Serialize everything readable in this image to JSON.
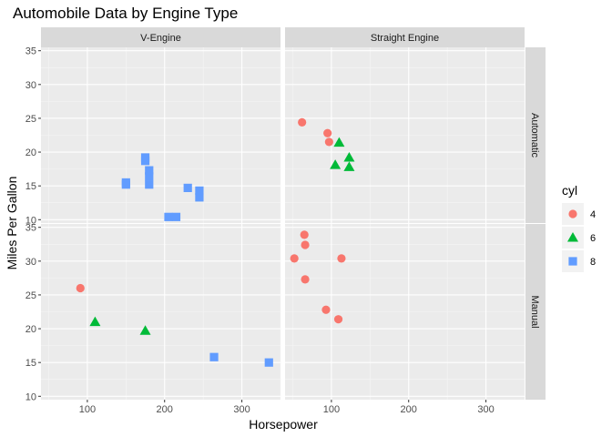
{
  "chart_data": {
    "type": "scatter",
    "title": "Automobile Data by Engine Type",
    "xlabel": "Horsepower",
    "ylabel": "Miles Per Gallon",
    "xlim": [
      40,
      350
    ],
    "ylim": [
      9.5,
      35.5
    ],
    "x_ticks": [
      100,
      200,
      300
    ],
    "y_ticks": [
      10,
      15,
      20,
      25,
      30,
      35
    ],
    "grid": true,
    "legend_position": "right",
    "col_facets": [
      "V-Engine",
      "Straight Engine"
    ],
    "row_facets": [
      "Automatic",
      "Manual"
    ],
    "legend": {
      "title": "cyl",
      "entries": [
        {
          "label": "4",
          "color": "#F8766D",
          "shape": "circle"
        },
        {
          "label": "6",
          "color": "#00BA38",
          "shape": "triangle"
        },
        {
          "label": "8",
          "color": "#619CFF",
          "shape": "square"
        }
      ]
    },
    "panels": [
      {
        "col": 0,
        "row": 0,
        "points": [
          {
            "x": 175,
            "y": 18.7,
            "cyl": "8"
          },
          {
            "x": 245,
            "y": 14.3,
            "cyl": "8"
          },
          {
            "x": 180,
            "y": 16.4,
            "cyl": "8"
          },
          {
            "x": 180,
            "y": 17.3,
            "cyl": "8"
          },
          {
            "x": 180,
            "y": 15.2,
            "cyl": "8"
          },
          {
            "x": 205,
            "y": 10.4,
            "cyl": "8"
          },
          {
            "x": 215,
            "y": 10.4,
            "cyl": "8"
          },
          {
            "x": 230,
            "y": 14.7,
            "cyl": "8"
          },
          {
            "x": 150,
            "y": 15.5,
            "cyl": "8"
          },
          {
            "x": 150,
            "y": 15.2,
            "cyl": "8"
          },
          {
            "x": 245,
            "y": 13.3,
            "cyl": "8"
          },
          {
            "x": 175,
            "y": 19.2,
            "cyl": "8"
          }
        ]
      },
      {
        "col": 1,
        "row": 0,
        "points": [
          {
            "x": 62,
            "y": 24.4,
            "cyl": "4"
          },
          {
            "x": 95,
            "y": 22.8,
            "cyl": "4"
          },
          {
            "x": 97,
            "y": 21.5,
            "cyl": "4"
          },
          {
            "x": 110,
            "y": 21.4,
            "cyl": "6"
          },
          {
            "x": 105,
            "y": 18.1,
            "cyl": "6"
          },
          {
            "x": 123,
            "y": 19.2,
            "cyl": "6"
          },
          {
            "x": 123,
            "y": 17.8,
            "cyl": "6"
          }
        ]
      },
      {
        "col": 0,
        "row": 1,
        "points": [
          {
            "x": 91,
            "y": 26.0,
            "cyl": "4"
          },
          {
            "x": 110,
            "y": 21.0,
            "cyl": "6"
          },
          {
            "x": 175,
            "y": 19.7,
            "cyl": "6"
          },
          {
            "x": 264,
            "y": 15.8,
            "cyl": "8"
          },
          {
            "x": 335,
            "y": 15.0,
            "cyl": "8"
          }
        ]
      },
      {
        "col": 1,
        "row": 1,
        "points": [
          {
            "x": 66,
            "y": 32.4,
            "cyl": "4"
          },
          {
            "x": 52,
            "y": 30.4,
            "cyl": "4"
          },
          {
            "x": 65,
            "y": 33.9,
            "cyl": "4"
          },
          {
            "x": 66,
            "y": 27.3,
            "cyl": "4"
          },
          {
            "x": 113,
            "y": 30.4,
            "cyl": "4"
          },
          {
            "x": 109,
            "y": 21.4,
            "cyl": "4"
          },
          {
            "x": 93,
            "y": 22.8,
            "cyl": "4"
          }
        ]
      }
    ]
  }
}
